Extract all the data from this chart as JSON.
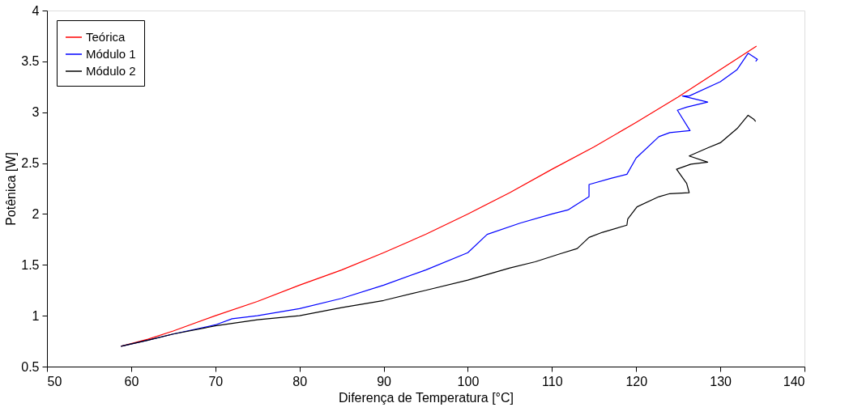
{
  "chart_data": {
    "type": "line",
    "xlabel": "Diferença de Temperatura [°C]",
    "ylabel": "Potênica [W]",
    "xlim": [
      50,
      140
    ],
    "ylim": [
      0.5,
      4
    ],
    "xticks": [
      50,
      60,
      70,
      80,
      90,
      100,
      110,
      120,
      130,
      140
    ],
    "yticks": [
      0.5,
      1,
      1.5,
      2,
      2.5,
      3,
      3.5,
      4
    ],
    "grid": false,
    "legend": "top left",
    "line_style": "solid",
    "marker": "none",
    "series": [
      {
        "name": "Teórica",
        "color": "#ff0000",
        "x": [
          58.8,
          62,
          65,
          70,
          75,
          80,
          85,
          90,
          95,
          100,
          105,
          110,
          115,
          120,
          125,
          130,
          134.3
        ],
        "values": [
          0.7,
          0.77,
          0.85,
          1.0,
          1.14,
          1.3,
          1.45,
          1.62,
          1.8,
          2.0,
          2.21,
          2.44,
          2.66,
          2.9,
          3.15,
          3.42,
          3.65
        ]
      },
      {
        "name": "Módulo 1",
        "color": "#0000ff",
        "x": [
          58.8,
          62,
          65,
          70,
          72,
          75,
          80,
          85,
          90,
          95,
          100,
          102.3,
          106.2,
          110,
          111.9,
          114.4,
          114.4,
          117,
          118.9,
          120,
          122.7,
          124,
          126.4,
          124.9,
          126,
          128.5,
          125.5,
          126.3,
          130,
          132,
          133.3,
          134.4,
          134.2
        ],
        "values": [
          0.7,
          0.76,
          0.82,
          0.91,
          0.97,
          1.0,
          1.07,
          1.17,
          1.3,
          1.45,
          1.62,
          1.8,
          1.91,
          2.0,
          2.04,
          2.17,
          2.29,
          2.35,
          2.39,
          2.55,
          2.76,
          2.8,
          2.82,
          3.02,
          3.05,
          3.1,
          3.16,
          3.16,
          3.3,
          3.42,
          3.58,
          3.52,
          3.5
        ]
      },
      {
        "name": "Módulo 2",
        "color": "#000000",
        "x": [
          58.8,
          62,
          65,
          70,
          75,
          80,
          85,
          90,
          95,
          100,
          105,
          108,
          111,
          113,
          114.4,
          116,
          118.9,
          119,
          120.1,
          122.7,
          124,
          126.3,
          126,
          124.8,
          126.5,
          128.5,
          126.3,
          128.5,
          130,
          132,
          133.3,
          134,
          134.2
        ],
        "values": [
          0.7,
          0.76,
          0.82,
          0.9,
          0.96,
          1.0,
          1.08,
          1.15,
          1.25,
          1.35,
          1.47,
          1.53,
          1.61,
          1.66,
          1.77,
          1.82,
          1.89,
          1.95,
          2.07,
          2.17,
          2.2,
          2.21,
          2.3,
          2.44,
          2.49,
          2.51,
          2.57,
          2.65,
          2.7,
          2.84,
          2.97,
          2.93,
          2.91
        ]
      }
    ]
  }
}
